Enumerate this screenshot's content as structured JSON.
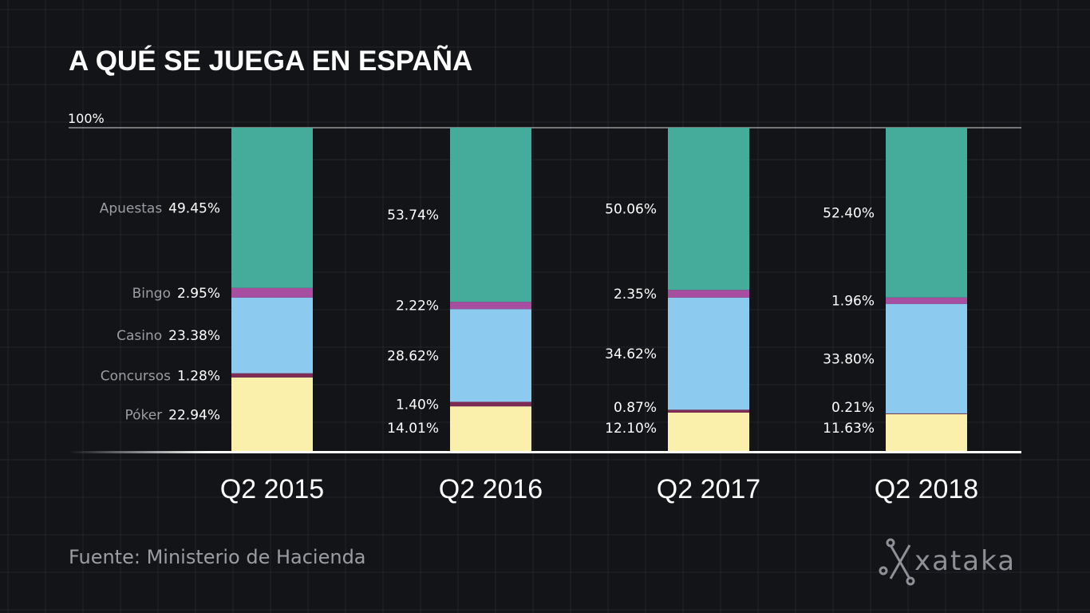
{
  "chart_data": {
    "type": "bar",
    "stacked": true,
    "title": "A QUÉ SE JUEGA EN ESPAÑA",
    "ymax_label": "100%",
    "categories": [
      "Q2 2015",
      "Q2 2016",
      "Q2 2017",
      "Q2 2018"
    ],
    "series": [
      {
        "name": "Póker",
        "color": "#fbf0ab",
        "values": [
          22.94,
          14.01,
          12.1,
          11.63
        ],
        "labels": [
          "22.94%",
          "14.01%",
          "12.10%",
          "11.63%"
        ]
      },
      {
        "name": "Concursos",
        "color": "#7e2c55",
        "values": [
          1.28,
          1.4,
          0.87,
          0.21
        ],
        "labels": [
          "1.28%",
          "1.40%",
          "0.87%",
          "0.21%"
        ]
      },
      {
        "name": "Casino",
        "color": "#8ccbef",
        "values": [
          23.38,
          28.62,
          34.62,
          33.8
        ],
        "labels": [
          "23.38%",
          "28.62%",
          "34.62%",
          "33.80%"
        ]
      },
      {
        "name": "Bingo",
        "color": "#a84ea0",
        "values": [
          2.95,
          2.22,
          2.35,
          1.96
        ],
        "labels": [
          "2.95%",
          "2.22%",
          "2.35%",
          "1.96%"
        ]
      },
      {
        "name": "Apuestas",
        "color": "#45ab9b",
        "values": [
          49.45,
          53.74,
          50.06,
          52.4
        ],
        "labels": [
          "49.45%",
          "53.74%",
          "50.06%",
          "52.40%"
        ]
      }
    ],
    "source": "Fuente: Ministerio de Hacienda"
  },
  "logo": {
    "text": "xataka"
  }
}
